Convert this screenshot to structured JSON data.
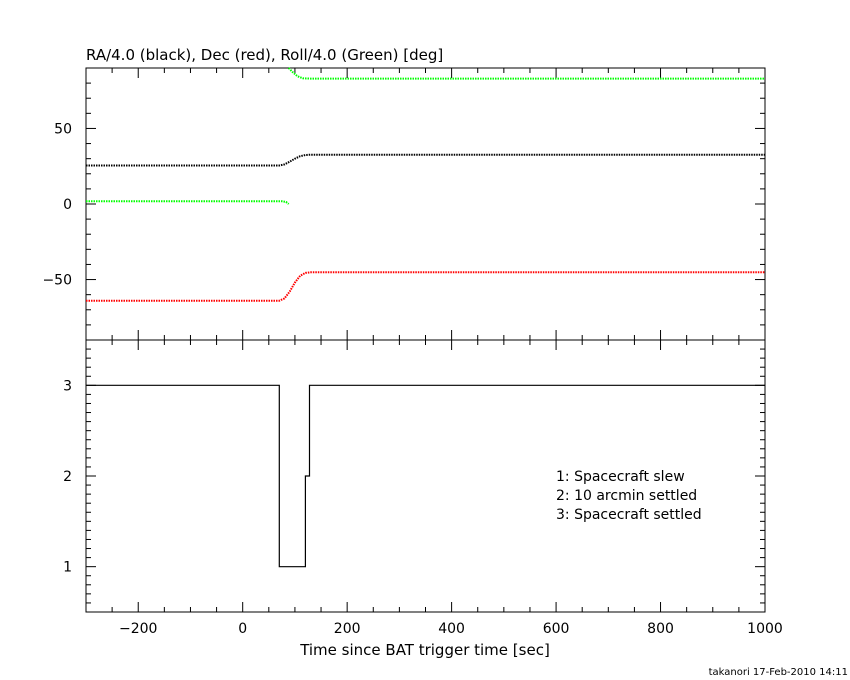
{
  "chart_data": [
    {
      "type": "line",
      "title": "RA/4.0 (black), Dec (red), Roll/4.0 (Green) [deg]",
      "xlim": [
        -300,
        1000
      ],
      "ylim": [
        -90,
        90
      ],
      "x_ticks": [
        -200,
        0,
        200,
        400,
        600,
        800,
        1000
      ],
      "y_ticks": [
        -50,
        0,
        50
      ],
      "y_tick_labels": [
        "−50",
        "0",
        "50"
      ],
      "grid": false,
      "series": [
        {
          "color": "#000000",
          "segments": [
            {
              "x": [
                -300,
                70,
                80,
                90,
                100,
                110,
                120,
                130,
                1000
              ],
              "y": [
                25.5,
                25.5,
                26.2,
                28.0,
                30.0,
                31.6,
                32.4,
                32.6,
                32.6
              ]
            }
          ]
        },
        {
          "color": "#ff0000",
          "segments": [
            {
              "x": [
                -300,
                70,
                80,
                90,
                100,
                110,
                120,
                130,
                1000
              ],
              "y": [
                -64.0,
                -64.0,
                -62.5,
                -58.0,
                -52.0,
                -47.5,
                -45.6,
                -45.2,
                -45.2
              ]
            }
          ]
        },
        {
          "color": "#00ff00",
          "segments": [
            {
              "x": [
                -300,
                75,
                83,
                88
              ],
              "y": [
                1.8,
                1.8,
                1.4,
                0.0
              ]
            },
            {
              "x": [
                88,
                95,
                105,
                115,
                130,
                1000
              ],
              "y": [
                90.0,
                87.5,
                84.5,
                83.2,
                83.0,
                83.0
              ]
            }
          ]
        }
      ]
    },
    {
      "type": "line",
      "xlabel": "Time since BAT trigger time [sec]",
      "xlim": [
        -300,
        1000
      ],
      "ylim": [
        0.5,
        3.5
      ],
      "x_ticks": [
        -200,
        0,
        200,
        400,
        600,
        800,
        1000
      ],
      "x_tick_labels": [
        "−200",
        "0",
        "200",
        "400",
        "600",
        "800",
        "1000"
      ],
      "y_ticks": [
        1,
        2,
        3
      ],
      "y_tick_labels": [
        "1",
        "2",
        "3"
      ],
      "grid": false,
      "series": [
        {
          "color": "#000000",
          "step": true,
          "x": [
            -300,
            70,
            70,
            120,
            120,
            128,
            128,
            1000
          ],
          "y": [
            3,
            3,
            1,
            1,
            2,
            2,
            3,
            3
          ]
        }
      ],
      "legend": [
        "1: Spacecraft slew",
        "2: 10 arcmin settled",
        "3: Spacecraft settled"
      ]
    }
  ],
  "footer": {
    "stamp": "takanori 17-Feb-2010 14:11"
  }
}
